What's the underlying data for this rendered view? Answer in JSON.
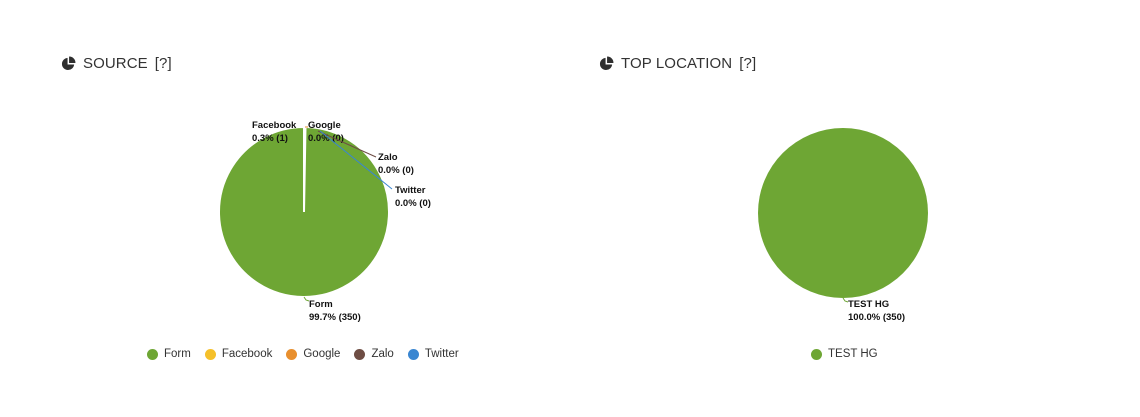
{
  "source_panel": {
    "title": "SOURCE",
    "help": "[?]",
    "icon": "pie-chart-icon"
  },
  "location_panel": {
    "title": "TOP LOCATION",
    "help": "[?]",
    "icon": "pie-chart-icon"
  },
  "chart_data": [
    {
      "type": "pie",
      "title": "SOURCE",
      "slices": [
        {
          "name": "Form",
          "value": 350,
          "percent": "99.7%",
          "color": "#6ea634"
        },
        {
          "name": "Facebook",
          "value": 1,
          "percent": "0.3%",
          "color": "#f5c02a"
        },
        {
          "name": "Google",
          "value": 0,
          "percent": "0.0%",
          "color": "#e88f2e"
        },
        {
          "name": "Zalo",
          "value": 0,
          "percent": "0.0%",
          "color": "#6e4d44"
        },
        {
          "name": "Twitter",
          "value": 0,
          "percent": "0.0%",
          "color": "#3a86d1"
        }
      ],
      "labels": [
        {
          "name": "Facebook",
          "text": "0.3% (1)"
        },
        {
          "name": "Google",
          "text": "0.0% (0)"
        },
        {
          "name": "Zalo",
          "text": "0.0% (0)"
        },
        {
          "name": "Twitter",
          "text": "0.0% (0)"
        },
        {
          "name": "Form",
          "text": "99.7% (350)"
        }
      ],
      "legend_position": "bottom"
    },
    {
      "type": "pie",
      "title": "TOP LOCATION",
      "slices": [
        {
          "name": "TEST HG",
          "value": 350,
          "percent": "100.0%",
          "color": "#6ea634"
        }
      ],
      "labels": [
        {
          "name": "TEST HG",
          "text": "100.0% (350)"
        }
      ],
      "legend_position": "bottom"
    }
  ]
}
